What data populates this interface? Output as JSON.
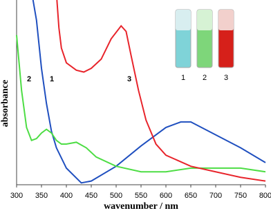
{
  "chart_data": {
    "type": "line",
    "xlabel": "wavenumber / nm",
    "ylabel": "absorbance",
    "xlim": [
      300,
      800
    ],
    "xticks": [
      300,
      350,
      400,
      450,
      500,
      550,
      600,
      650,
      700,
      750,
      800
    ],
    "ylim": [
      0,
      1
    ],
    "series": [
      {
        "name": "1",
        "color": "#1f4fbf",
        "x": [
          333,
          340,
          350,
          360,
          370,
          380,
          400,
          430,
          450,
          500,
          550,
          600,
          630,
          650,
          700,
          750,
          800
        ],
        "values": [
          1.0,
          0.89,
          0.63,
          0.44,
          0.29,
          0.2,
          0.09,
          0.01,
          0.02,
          0.1,
          0.21,
          0.31,
          0.34,
          0.34,
          0.27,
          0.2,
          0.12
        ]
      },
      {
        "name": "2",
        "color": "#4ddd44",
        "x": [
          300,
          310,
          320,
          330,
          340,
          350,
          360,
          370,
          380,
          390,
          400,
          420,
          440,
          460,
          500,
          550,
          600,
          650,
          700,
          750,
          800
        ],
        "values": [
          0.81,
          0.51,
          0.31,
          0.24,
          0.25,
          0.28,
          0.3,
          0.28,
          0.24,
          0.22,
          0.22,
          0.23,
          0.2,
          0.15,
          0.1,
          0.07,
          0.07,
          0.09,
          0.09,
          0.09,
          0.07
        ]
      },
      {
        "name": "3",
        "color": "#e8242b",
        "x": [
          381,
          385,
          390,
          400,
          420,
          435,
          450,
          470,
          490,
          510,
          520,
          530,
          545,
          560,
          580,
          600,
          650,
          700,
          750,
          800
        ],
        "values": [
          1.0,
          0.85,
          0.74,
          0.66,
          0.62,
          0.61,
          0.63,
          0.68,
          0.79,
          0.86,
          0.83,
          0.7,
          0.51,
          0.35,
          0.22,
          0.16,
          0.1,
          0.07,
          0.04,
          0.02
        ]
      }
    ],
    "inset_labels": [
      "1",
      "2",
      "3"
    ]
  }
}
